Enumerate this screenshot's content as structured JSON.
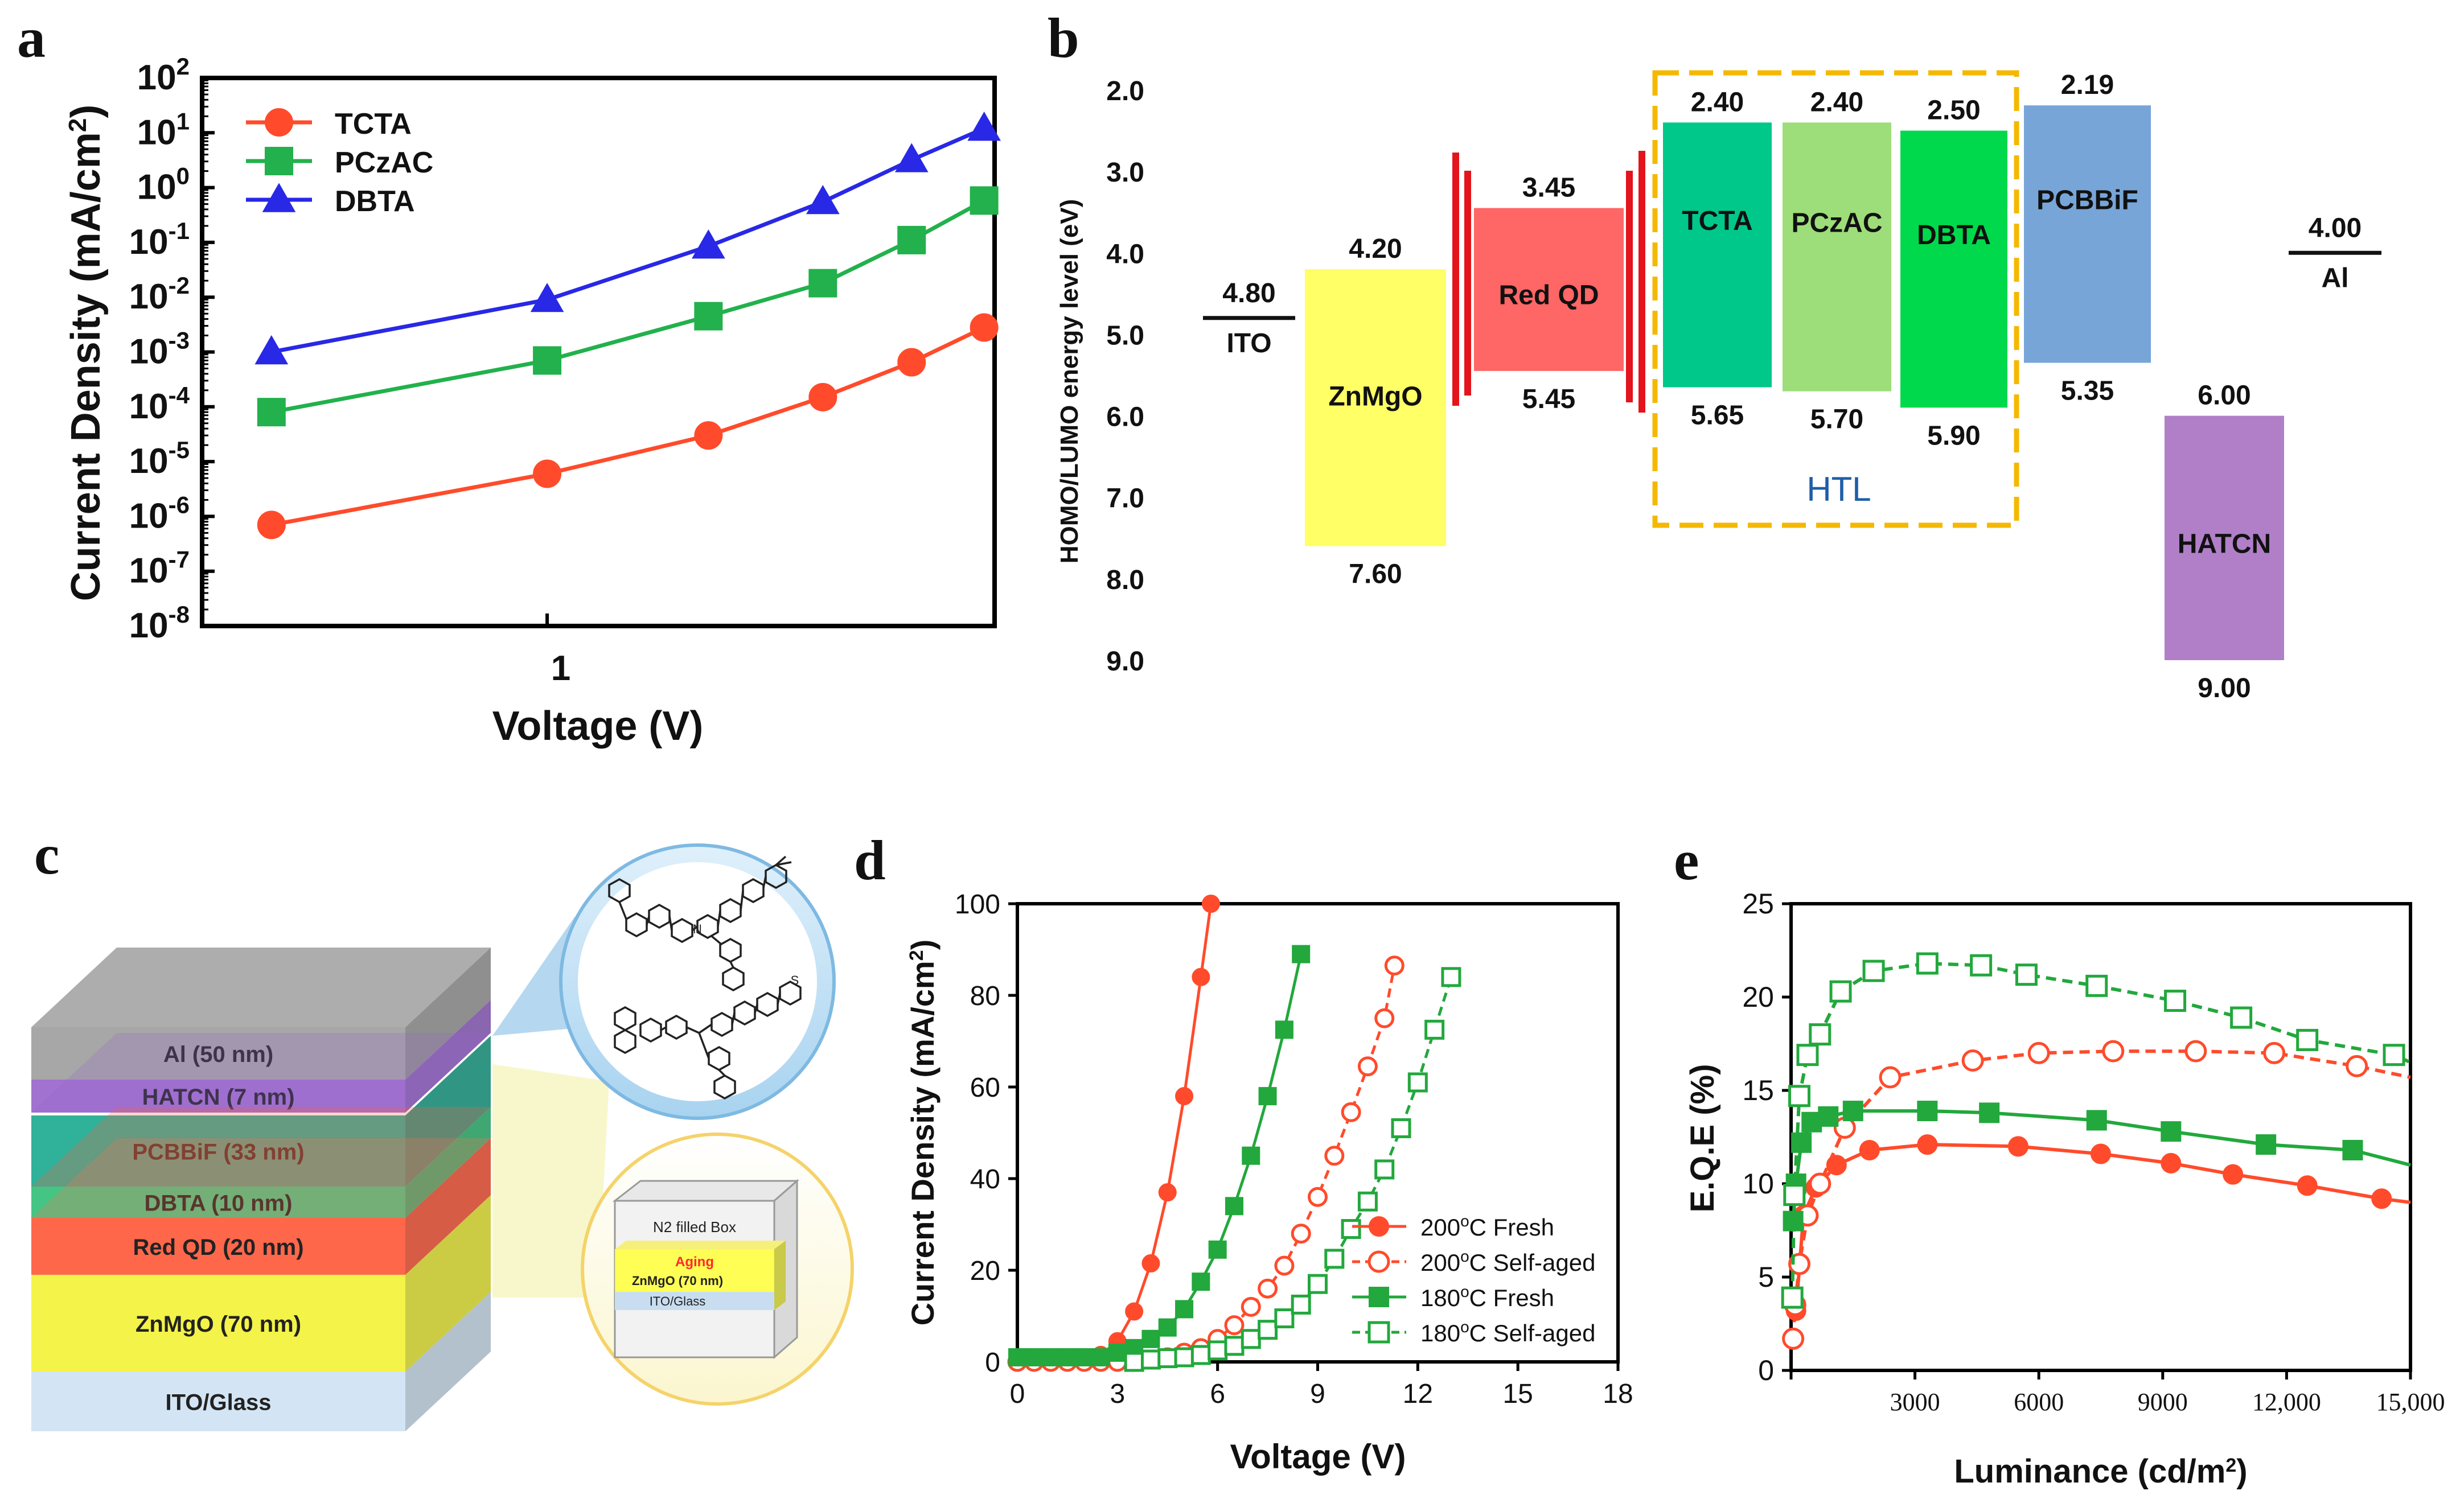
{
  "panel_letters": [
    "a",
    "b",
    "c",
    "d",
    "e"
  ],
  "chart_data": [
    {
      "panel": "a",
      "type": "line",
      "title": "",
      "xlabel": "Voltage (V)",
      "ylabel": "Current Density (mA/cm2)",
      "x_scale": "log",
      "y_scale": "log",
      "x_ticks": [
        "1"
      ],
      "y_ticks": [
        "10-8",
        "10-7",
        "10-6",
        "10-5",
        "10-4",
        "10-3",
        "10-2",
        "10-1",
        "100",
        "101",
        "102"
      ],
      "ylim": [
        1e-08,
        100
      ],
      "legend_position": "top-left",
      "x": [
        0.5,
        1.0,
        1.5,
        2.0,
        2.5,
        3.0
      ],
      "series": [
        {
          "name": "TCTA",
          "marker": "circle",
          "color": "#ff4b2b",
          "values": [
            7e-07,
            6e-06,
            3e-05,
            0.00015,
            0.00065,
            0.0028
          ]
        },
        {
          "name": "PCzAC",
          "marker": "square",
          "color": "#22b14c",
          "values": [
            8e-05,
            0.0007,
            0.0045,
            0.018,
            0.11,
            0.58
          ]
        },
        {
          "name": "DBTA",
          "marker": "triangle",
          "color": "#2828e6",
          "values": [
            0.001,
            0.009,
            0.085,
            0.55,
            3.2,
            12.0
          ]
        }
      ]
    },
    {
      "panel": "b",
      "type": "energy-level-diagram",
      "ylabel": "HOMO/LUMO energy level (eV)",
      "y_ticks": [
        "2.0",
        "3.0",
        "4.0",
        "5.0",
        "6.0",
        "7.0",
        "8.0",
        "9.0"
      ],
      "ylim": [
        2.0,
        9.0
      ],
      "y_inverted": true,
      "group_label": "HTL",
      "group_color": "#f5b800",
      "layers": [
        {
          "name": "ITO",
          "kind": "line",
          "level": 4.8,
          "label": "4.80"
        },
        {
          "name": "ZnMgO",
          "kind": "band",
          "lumo": 4.2,
          "homo": 7.6,
          "lumo_label": "4.20",
          "homo_label": "7.60",
          "color": "#ffff66"
        },
        {
          "name": "Red QD",
          "kind": "band",
          "lumo": 3.45,
          "homo": 5.45,
          "lumo_label": "3.45",
          "homo_label": "5.45",
          "color": "#ff6666"
        },
        {
          "name": "TCTA",
          "kind": "band",
          "lumo": 2.4,
          "homo": 5.65,
          "lumo_label": "2.40",
          "homo_label": "5.65",
          "color": "#00c78a"
        },
        {
          "name": "PCzAC",
          "kind": "band",
          "lumo": 2.4,
          "homo": 5.7,
          "lumo_label": "2.40",
          "homo_label": "5.70",
          "color": "#9ddd7a"
        },
        {
          "name": "DBTA",
          "kind": "band",
          "lumo": 2.5,
          "homo": 5.9,
          "lumo_label": "2.50",
          "homo_label": "5.90",
          "color": "#00d94b"
        },
        {
          "name": "PCBBiF",
          "kind": "band",
          "lumo": 2.19,
          "homo": 5.35,
          "lumo_label": "2.19",
          "homo_label": "5.35",
          "color": "#77a5d8"
        },
        {
          "name": "HATCN",
          "kind": "band",
          "lumo": 6.0,
          "homo": 9.0,
          "lumo_label": "6.00",
          "homo_label": "9.00",
          "color": "#b07fc8"
        },
        {
          "name": "Al",
          "kind": "line",
          "level": 4.0,
          "label": "4.00"
        }
      ]
    },
    {
      "panel": "d",
      "type": "line",
      "title": "",
      "xlabel": "Voltage (V)",
      "ylabel": "Current Density (mA/cm2)",
      "xlim": [
        0,
        18
      ],
      "ylim": [
        0,
        100
      ],
      "x_ticks": [
        "0",
        "3",
        "6",
        "9",
        "12",
        "15",
        "18"
      ],
      "y_ticks": [
        "0",
        "20",
        "40",
        "60",
        "80",
        "100"
      ],
      "legend_position": "bottom-right",
      "series": [
        {
          "name": "200oC Fresh",
          "color": "#ff4b2b",
          "marker": "circle",
          "filled": true,
          "dashed": false,
          "x": [
            0,
            0.5,
            1.0,
            1.5,
            2.0,
            2.5,
            3.0,
            3.5,
            4.0,
            4.5,
            5.0,
            5.5,
            5.8
          ],
          "y": [
            0.5,
            0.5,
            0.5,
            0.5,
            0.7,
            1.5,
            4.5,
            11,
            21.5,
            37,
            58,
            84,
            100
          ]
        },
        {
          "name": "200oC Self-aged",
          "color": "#ff4b2b",
          "marker": "circle",
          "filled": false,
          "dashed": true,
          "x": [
            0,
            0.5,
            1.0,
            1.5,
            2.0,
            2.5,
            3.0,
            3.5,
            4.0,
            4.5,
            5.0,
            5.5,
            6.0,
            6.5,
            7.0,
            7.5,
            8.0,
            8.5,
            9.0,
            9.5,
            10.0,
            10.5,
            11.0,
            11.3
          ],
          "y": [
            0,
            0,
            0,
            0,
            0,
            0,
            0,
            0.2,
            0.5,
            1,
            2,
            3,
            5,
            8,
            12,
            16,
            21,
            28,
            36,
            45,
            54.5,
            64.5,
            75,
            86.5
          ]
        },
        {
          "name": "180oC Fresh",
          "color": "#22a83c",
          "marker": "square",
          "filled": true,
          "dashed": false,
          "x": [
            0,
            0.5,
            1.0,
            1.5,
            2.0,
            2.5,
            3.0,
            3.5,
            4.0,
            4.5,
            5.0,
            5.5,
            6.0,
            6.5,
            7.0,
            7.5,
            8.0,
            8.5
          ],
          "y": [
            1,
            1,
            1,
            1,
            1,
            1,
            2,
            3,
            5,
            7.5,
            11.5,
            17.5,
            24.5,
            34,
            45,
            58,
            72.5,
            89
          ]
        },
        {
          "name": "180oC Self-aged",
          "color": "#22a83c",
          "marker": "square",
          "filled": false,
          "dashed": true,
          "x": [
            3.5,
            4.0,
            4.5,
            5.0,
            5.5,
            6.0,
            6.5,
            7.0,
            7.5,
            8.0,
            8.5,
            9.0,
            9.5,
            10.0,
            10.5,
            11.0,
            11.5,
            12.0,
            12.5,
            13.0
          ],
          "y": [
            0,
            0.5,
            0.8,
            1,
            1.5,
            2.5,
            3.5,
            5,
            7,
            9.5,
            12.5,
            17,
            22.5,
            29,
            35,
            42,
            51,
            61,
            72.5,
            84
          ]
        }
      ]
    },
    {
      "panel": "e",
      "type": "line",
      "title": "",
      "xlabel": "Luminance (cd/m2)",
      "ylabel": "E.Q.E (%)",
      "xlim": [
        0,
        15000
      ],
      "ylim": [
        0,
        25
      ],
      "x_ticks": [
        "0",
        "3000",
        "6000",
        "9000",
        "12,000",
        "15,000"
      ],
      "y_ticks": [
        "0",
        "5",
        "10",
        "15",
        "20",
        "25"
      ],
      "series": [
        {
          "name": "200oC Fresh",
          "color": "#ff4b2b",
          "marker": "circle",
          "filled": true,
          "dashed": false,
          "x": [
            120,
            300,
            600,
            1100,
            1900,
            3300,
            5500,
            7500,
            9200,
            10700,
            12500,
            14300,
            15000
          ],
          "y": [
            3.2,
            8.3,
            9.8,
            11.0,
            11.8,
            12.1,
            12.0,
            11.6,
            11.1,
            10.5,
            9.9,
            9.2,
            9.0
          ]
        },
        {
          "name": "200oC Self-aged",
          "color": "#ff4b2b",
          "marker": "circle",
          "filled": false,
          "dashed": true,
          "x": [
            50,
            100,
            200,
            400,
            700,
            1300,
            2400,
            4400,
            6000,
            7800,
            9800,
            11700,
            13700,
            15000
          ],
          "y": [
            1.7,
            3.5,
            5.7,
            8.3,
            10.0,
            13.0,
            15.7,
            16.6,
            17.0,
            17.1,
            17.1,
            17.0,
            16.3,
            15.7
          ]
        },
        {
          "name": "180oC Fresh",
          "color": "#22a83c",
          "marker": "square",
          "filled": true,
          "dashed": false,
          "x": [
            50,
            120,
            250,
            500,
            900,
            1500,
            3300,
            4800,
            7400,
            9200,
            11500,
            13600,
            15000
          ],
          "y": [
            8.0,
            10.0,
            12.2,
            13.3,
            13.6,
            13.9,
            13.9,
            13.8,
            13.4,
            12.8,
            12.1,
            11.8,
            11.0
          ]
        },
        {
          "name": "180oC Self-aged",
          "color": "#22a83c",
          "marker": "square",
          "filled": false,
          "dashed": true,
          "x": [
            30,
            80,
            200,
            400,
            700,
            1200,
            2000,
            3300,
            4600,
            5700,
            7400,
            9300,
            10900,
            12500,
            14600,
            15000
          ],
          "y": [
            3.9,
            9.4,
            14.7,
            16.9,
            18.0,
            20.3,
            21.4,
            21.8,
            21.7,
            21.2,
            20.6,
            19.8,
            18.9,
            17.7,
            16.9,
            16.5
          ]
        }
      ]
    }
  ],
  "panel_c": {
    "stack_layers": [
      {
        "label": "Al (50 nm)",
        "color": "#a0a0a0"
      },
      {
        "label": "HATCN (7 nm)",
        "color": "#9966cc"
      },
      {
        "label": "PCBBiF (33 nm)",
        "color": "#1eaa90"
      },
      {
        "label": "DBTA (10 nm)",
        "color": "#34c07a"
      },
      {
        "label": "Red QD (20 nm)",
        "color": "#ff5a3c"
      },
      {
        "label": "ZnMgO (70 nm)",
        "color": "#f2f23a"
      },
      {
        "label": "ITO/Glass",
        "color": "#cfe3f3"
      }
    ],
    "inset_box": {
      "box_label": "N2 filled Box",
      "aging_label": "Aging",
      "layer_top": "ZnMgO (70 nm)",
      "layer_bottom": "ITO/Glass"
    }
  }
}
